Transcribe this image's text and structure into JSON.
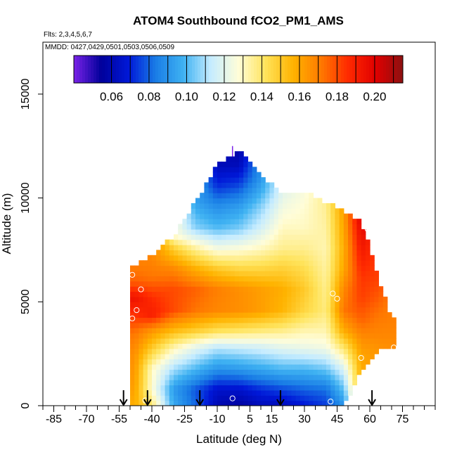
{
  "chart_data": {
    "type": "heatmap",
    "title": "ATOM4 Southbound fCO2_PM1_AMS",
    "subtitle_flights": "Flts: 2,3,4,5,6,7",
    "subtitle_dates": "MMDD: 0427,0429,0501,0503,0506,0509",
    "xlabel": "Latitude (deg N)",
    "ylabel": "Altitude (m)",
    "xlim": [
      -90,
      90
    ],
    "ylim": [
      0,
      17500
    ],
    "x_ticks": [
      -85,
      -70,
      -55,
      -40,
      -25,
      -10,
      5,
      15,
      30,
      45,
      60,
      75
    ],
    "x_tick_labels": [
      "-85",
      "-70",
      "-55",
      "-40",
      "-25",
      "-10",
      "5",
      "15",
      "30",
      "45",
      "60",
      "75"
    ],
    "y_ticks": [
      0,
      5000,
      10000,
      15000
    ],
    "y_tick_labels": [
      "0",
      "5000",
      "10000",
      "15000"
    ],
    "colorbar": {
      "range": [
        0.04,
        0.215
      ],
      "ticks": [
        0.06,
        0.08,
        0.1,
        0.12,
        0.14,
        0.16,
        0.18,
        0.2
      ],
      "tick_labels": [
        "0.06",
        "0.08",
        "0.10",
        "0.12",
        "0.14",
        "0.16",
        "0.18",
        "0.20"
      ],
      "colors": [
        "#7a22e8",
        "#00009a",
        "#0018d8",
        "#1a7ee6",
        "#3fb2f2",
        "#c6ecff",
        "#fffdd8",
        "#ffe35a",
        "#ffb300",
        "#ff7a00",
        "#ff2a00",
        "#e10000",
        "#8c1010"
      ]
    },
    "profile_arrows_lat": [
      -53,
      -42,
      -18,
      19,
      61
    ],
    "grid_columns": [
      {
        "lat": -48,
        "top": 6800,
        "values": [
          [
            0,
            0.158
          ],
          [
            1000,
            0.162
          ],
          [
            2500,
            0.166
          ],
          [
            3500,
            0.172
          ],
          [
            4500,
            0.186
          ],
          [
            5200,
            0.194
          ],
          [
            6000,
            0.176
          ],
          [
            6800,
            0.17
          ]
        ]
      },
      {
        "lat": -40,
        "top": 7200,
        "values": [
          [
            0,
            0.14
          ],
          [
            800,
            0.128
          ],
          [
            1800,
            0.13
          ],
          [
            2800,
            0.15
          ],
          [
            3600,
            0.164
          ],
          [
            4400,
            0.19
          ],
          [
            5200,
            0.186
          ],
          [
            6200,
            0.172
          ],
          [
            7200,
            0.168
          ]
        ]
      },
      {
        "lat": -30,
        "top": 8200,
        "values": [
          [
            0,
            0.096
          ],
          [
            800,
            0.092
          ],
          [
            1800,
            0.11
          ],
          [
            2800,
            0.132
          ],
          [
            3600,
            0.154
          ],
          [
            4600,
            0.18
          ],
          [
            5600,
            0.18
          ],
          [
            6600,
            0.168
          ],
          [
            7600,
            0.148
          ],
          [
            8200,
            0.128
          ]
        ]
      },
      {
        "lat": -20,
        "top": 9800,
        "values": [
          [
            0,
            0.08
          ],
          [
            800,
            0.078
          ],
          [
            1800,
            0.1
          ],
          [
            2800,
            0.12
          ],
          [
            3600,
            0.148
          ],
          [
            4600,
            0.172
          ],
          [
            5600,
            0.176
          ],
          [
            6600,
            0.158
          ],
          [
            7600,
            0.134
          ],
          [
            8600,
            0.106
          ],
          [
            9800,
            0.094
          ]
        ]
      },
      {
        "lat": -10,
        "top": 11600,
        "values": [
          [
            0,
            0.06
          ],
          [
            800,
            0.066
          ],
          [
            1800,
            0.09
          ],
          [
            2800,
            0.112
          ],
          [
            3600,
            0.142
          ],
          [
            4600,
            0.168
          ],
          [
            5600,
            0.17
          ],
          [
            6600,
            0.15
          ],
          [
            7600,
            0.124
          ],
          [
            8600,
            0.1
          ],
          [
            9600,
            0.088
          ],
          [
            10600,
            0.072
          ],
          [
            11600,
            0.062
          ]
        ]
      },
      {
        "lat": 0,
        "top": 12300,
        "values": [
          [
            0,
            0.056
          ],
          [
            800,
            0.066
          ],
          [
            1800,
            0.092
          ],
          [
            2800,
            0.114
          ],
          [
            3600,
            0.14
          ],
          [
            4600,
            0.166
          ],
          [
            5600,
            0.166
          ],
          [
            6600,
            0.146
          ],
          [
            7600,
            0.126
          ],
          [
            8600,
            0.104
          ],
          [
            9600,
            0.092
          ],
          [
            10600,
            0.076
          ],
          [
            11600,
            0.062
          ],
          [
            12300,
            0.058
          ]
        ]
      },
      {
        "lat": 10,
        "top": 11000,
        "values": [
          [
            0,
            0.062
          ],
          [
            800,
            0.072
          ],
          [
            1800,
            0.096
          ],
          [
            2800,
            0.116
          ],
          [
            3600,
            0.138
          ],
          [
            4600,
            0.162
          ],
          [
            5600,
            0.162
          ],
          [
            6600,
            0.146
          ],
          [
            7600,
            0.13
          ],
          [
            8600,
            0.116
          ],
          [
            9600,
            0.106
          ],
          [
            10400,
            0.096
          ],
          [
            11000,
            0.09
          ]
        ]
      },
      {
        "lat": 20,
        "top": 10300,
        "values": [
          [
            0,
            0.062
          ],
          [
            800,
            0.076
          ],
          [
            1800,
            0.1
          ],
          [
            2800,
            0.12
          ],
          [
            3600,
            0.136
          ],
          [
            4600,
            0.156
          ],
          [
            5600,
            0.158
          ],
          [
            6600,
            0.148
          ],
          [
            7600,
            0.136
          ],
          [
            8600,
            0.13
          ],
          [
            9600,
            0.124
          ],
          [
            10300,
            0.12
          ]
        ]
      },
      {
        "lat": 30,
        "top": 10300,
        "values": [
          [
            0,
            0.068
          ],
          [
            800,
            0.08
          ],
          [
            1800,
            0.1
          ],
          [
            2800,
            0.122
          ],
          [
            3600,
            0.132
          ],
          [
            4600,
            0.146
          ],
          [
            5600,
            0.15
          ],
          [
            6600,
            0.144
          ],
          [
            7600,
            0.136
          ],
          [
            8600,
            0.13
          ],
          [
            9600,
            0.128
          ],
          [
            10300,
            0.126
          ]
        ]
      },
      {
        "lat": 40,
        "top": 9800,
        "values": [
          [
            0,
            0.074
          ],
          [
            800,
            0.082
          ],
          [
            1800,
            0.104
          ],
          [
            2800,
            0.124
          ],
          [
            3600,
            0.132
          ],
          [
            4600,
            0.138
          ],
          [
            5600,
            0.136
          ],
          [
            6600,
            0.134
          ],
          [
            7600,
            0.132
          ],
          [
            8600,
            0.134
          ],
          [
            9800,
            0.136
          ]
        ]
      },
      {
        "lat": 48,
        "top": 9400,
        "values": [
          [
            0,
            0.09
          ],
          [
            800,
            0.102
          ],
          [
            1800,
            0.118
          ],
          [
            2800,
            0.14
          ],
          [
            3600,
            0.158
          ],
          [
            4600,
            0.172
          ],
          [
            5600,
            0.168
          ],
          [
            6600,
            0.16
          ],
          [
            7600,
            0.158
          ],
          [
            8600,
            0.16
          ],
          [
            9400,
            0.162
          ]
        ]
      },
      {
        "lat": 56,
        "top": 8900,
        "values": [
          [
            1600,
            0.158
          ],
          [
            2400,
            0.16
          ],
          [
            3200,
            0.166
          ],
          [
            4200,
            0.176
          ],
          [
            5200,
            0.182
          ],
          [
            6200,
            0.184
          ],
          [
            7200,
            0.19
          ],
          [
            8200,
            0.196
          ],
          [
            8900,
            0.2
          ]
        ]
      },
      {
        "lat": 64,
        "top": 6200,
        "values": [
          [
            2600,
            0.164
          ],
          [
            3400,
            0.168
          ],
          [
            4400,
            0.172
          ],
          [
            5400,
            0.178
          ],
          [
            6200,
            0.182
          ]
        ]
      },
      {
        "lat": 70,
        "top": 4200,
        "values": [
          [
            2800,
            0.166
          ],
          [
            3400,
            0.168
          ],
          [
            4200,
            0.17
          ]
        ]
      }
    ]
  }
}
